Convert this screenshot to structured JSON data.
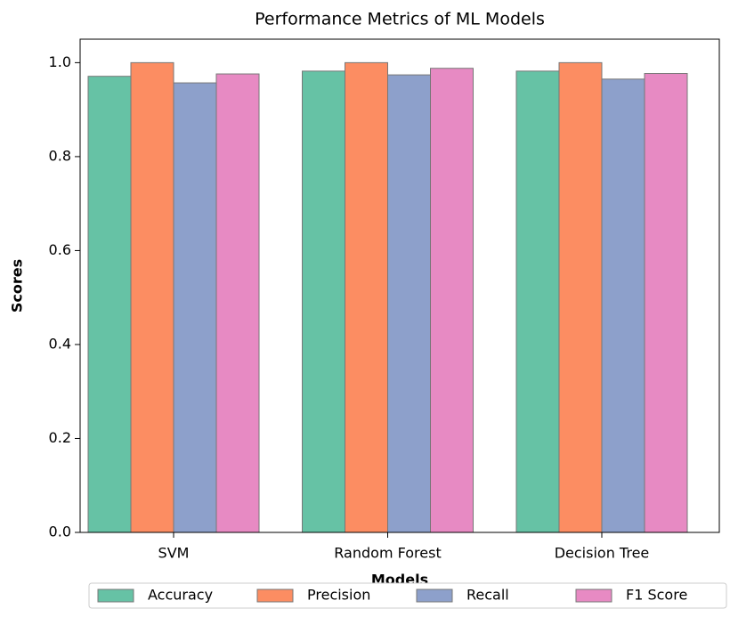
{
  "chart_data": {
    "type": "bar",
    "title": "Performance Metrics of ML Models",
    "xlabel": "Models",
    "ylabel": "Scores",
    "categories": [
      "SVM",
      "Random Forest",
      "Decision Tree"
    ],
    "series": [
      {
        "name": "Accuracy",
        "color": "#66c2a5",
        "values": [
          0.971,
          0.982,
          0.982
        ]
      },
      {
        "name": "Precision",
        "color": "#fc8d62",
        "values": [
          1.0,
          1.0,
          1.0
        ]
      },
      {
        "name": "Recall",
        "color": "#8da0cb",
        "values": [
          0.957,
          0.974,
          0.965
        ]
      },
      {
        "name": "F1 Score",
        "color": "#e78ac3",
        "values": [
          0.976,
          0.988,
          0.977
        ]
      }
    ],
    "ylim": [
      0,
      1.05
    ],
    "yticks": [
      {
        "value": 0,
        "label": "0.0"
      },
      0.2,
      0.4,
      0.6,
      0.8,
      {
        "value": 1,
        "label": "1.0"
      }
    ],
    "legend": "lower center"
  }
}
